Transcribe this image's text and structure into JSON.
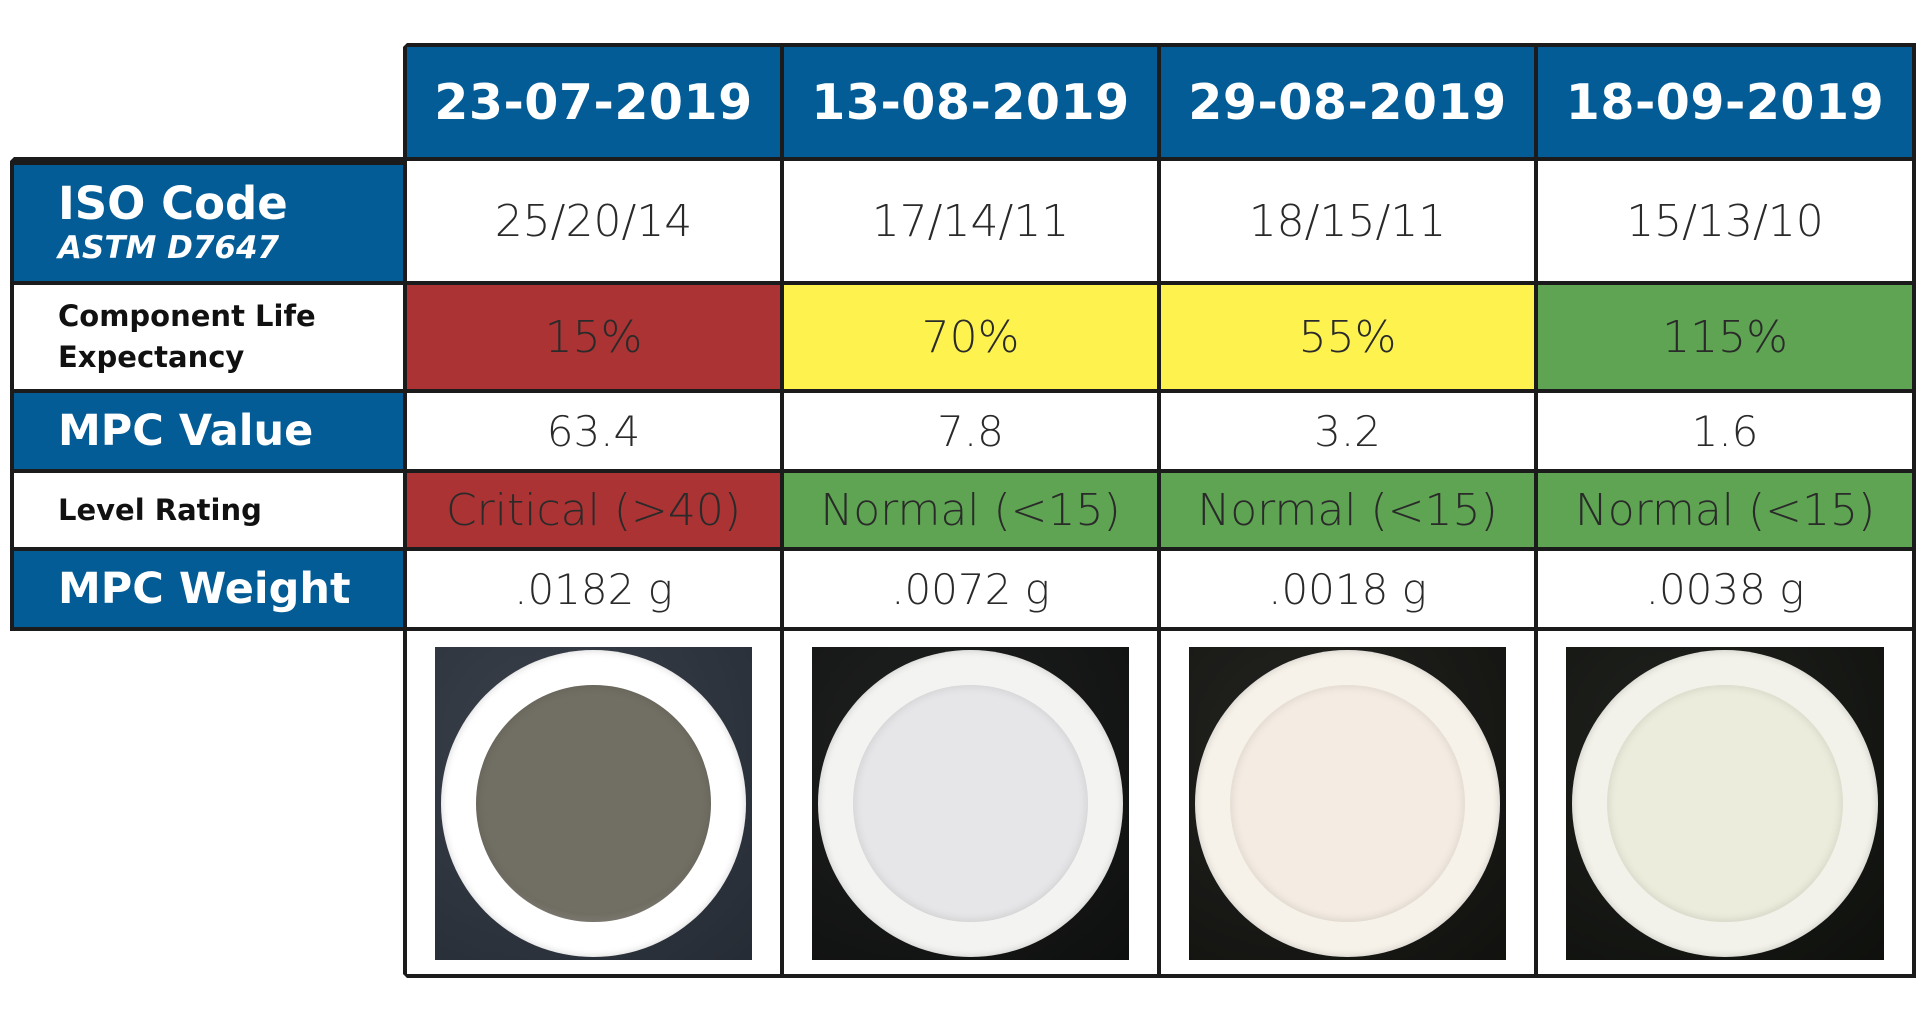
{
  "table": {
    "dates": [
      "23-07-2019",
      "13-08-2019",
      "29-08-2019",
      "18-09-2019"
    ],
    "rows": {
      "iso_code": {
        "label": "ISO Code",
        "sublabel": "ASTM D7647",
        "values": [
          "25/20/14",
          "17/14/11",
          "18/15/11",
          "15/13/10"
        ]
      },
      "component_life": {
        "label_line1": "Component Life",
        "label_line2": "Expectancy",
        "values": [
          "15%",
          "70%",
          "55%",
          "115%"
        ],
        "colors": [
          "#ac3333",
          "#fef34e",
          "#fef34e",
          "#5ea452"
        ]
      },
      "mpc_value": {
        "label": "MPC Value",
        "values": [
          "63.4",
          "7.8",
          "3.2",
          "1.6"
        ]
      },
      "level_rating": {
        "label": "Level Rating",
        "values": [
          "Critical (>40)",
          "Normal (<15)",
          "Normal (<15)",
          "Normal (<15)"
        ],
        "colors": [
          "#ac3333",
          "#5ea452",
          "#5ea452",
          "#5ea452"
        ]
      },
      "mpc_weight": {
        "label": "MPC Weight",
        "values": [
          ".0182 g",
          ".0072 g",
          ".0018 g",
          ".0038 g"
        ]
      }
    },
    "samples": [
      {
        "name": "membrane-patch-2019-07-23",
        "background": "#2e3540",
        "ring": "#ffffff",
        "deposit": "#716e63"
      },
      {
        "name": "membrane-patch-2019-08-13",
        "background": "#111312",
        "ring": "#f3f3f1",
        "deposit": "#e6e6e8"
      },
      {
        "name": "membrane-patch-2019-08-29",
        "background": "#151512",
        "ring": "#f6f2ea",
        "deposit": "#f4ece2"
      },
      {
        "name": "membrane-patch-2019-09-18",
        "background": "#121410",
        "ring": "#f2f2ea",
        "deposit": "#ececdc"
      }
    ],
    "header_color": "#035c95"
  }
}
